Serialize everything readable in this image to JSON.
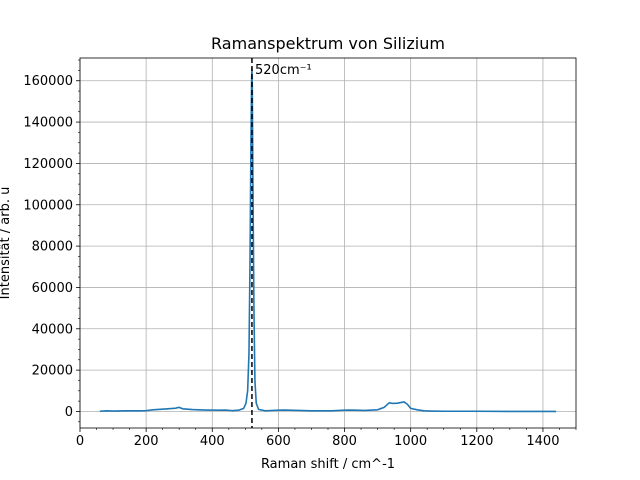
{
  "chart_data": {
    "type": "line",
    "title": "Ramanspektrum von Silizium",
    "xlabel": "Raman shift / cm^-1",
    "ylabel": "Intensität / arb. u",
    "xlim": [
      0,
      1500
    ],
    "ylim": [
      -8000,
      171000
    ],
    "x_ticks": [
      0,
      200,
      400,
      600,
      800,
      1000,
      1200,
      1400
    ],
    "x_tick_labels": [
      "0",
      "200",
      "400",
      "600",
      "800",
      "1000",
      "1200",
      "1400"
    ],
    "y_ticks": [
      0,
      20000,
      40000,
      60000,
      80000,
      100000,
      120000,
      140000,
      160000
    ],
    "y_tick_labels": [
      "0",
      "20000",
      "40000",
      "60000",
      "80000",
      "100000",
      "120000",
      "140000",
      "160000"
    ],
    "grid": true,
    "colors": {
      "series": "#1f77b4",
      "grid": "#b0b0b0",
      "reference_line": "#000000"
    },
    "series": [
      {
        "x": [
          60,
          80,
          100,
          140,
          180,
          200,
          220,
          260,
          290,
          300,
          310,
          340,
          380,
          420,
          440,
          460,
          480,
          495,
          502,
          507,
          511,
          514,
          517,
          519,
          520,
          521,
          523,
          526,
          529,
          533,
          540,
          560,
          600,
          620,
          660,
          700,
          760,
          800,
          820,
          860,
          900,
          920,
          935,
          945,
          960,
          980,
          990,
          1000,
          1020,
          1040,
          1060,
          1100,
          1200,
          1300,
          1400,
          1440
        ],
        "y": [
          100,
          300,
          200,
          300,
          300,
          400,
          800,
          1200,
          1600,
          2000,
          1300,
          900,
          700,
          600,
          700,
          400,
          600,
          1500,
          4000,
          10000,
          28000,
          70000,
          130000,
          160000,
          166000,
          158000,
          110000,
          50000,
          15000,
          4000,
          1000,
          300,
          600,
          700,
          500,
          300,
          300,
          600,
          700,
          500,
          800,
          2000,
          4200,
          3900,
          4000,
          4600,
          3500,
          1500,
          800,
          300,
          200,
          100,
          100,
          0,
          0,
          0
        ]
      }
    ],
    "annotations": [
      {
        "type": "vertical_line",
        "x": 520,
        "style": "dashed",
        "label": "520cm⁻¹"
      }
    ]
  }
}
